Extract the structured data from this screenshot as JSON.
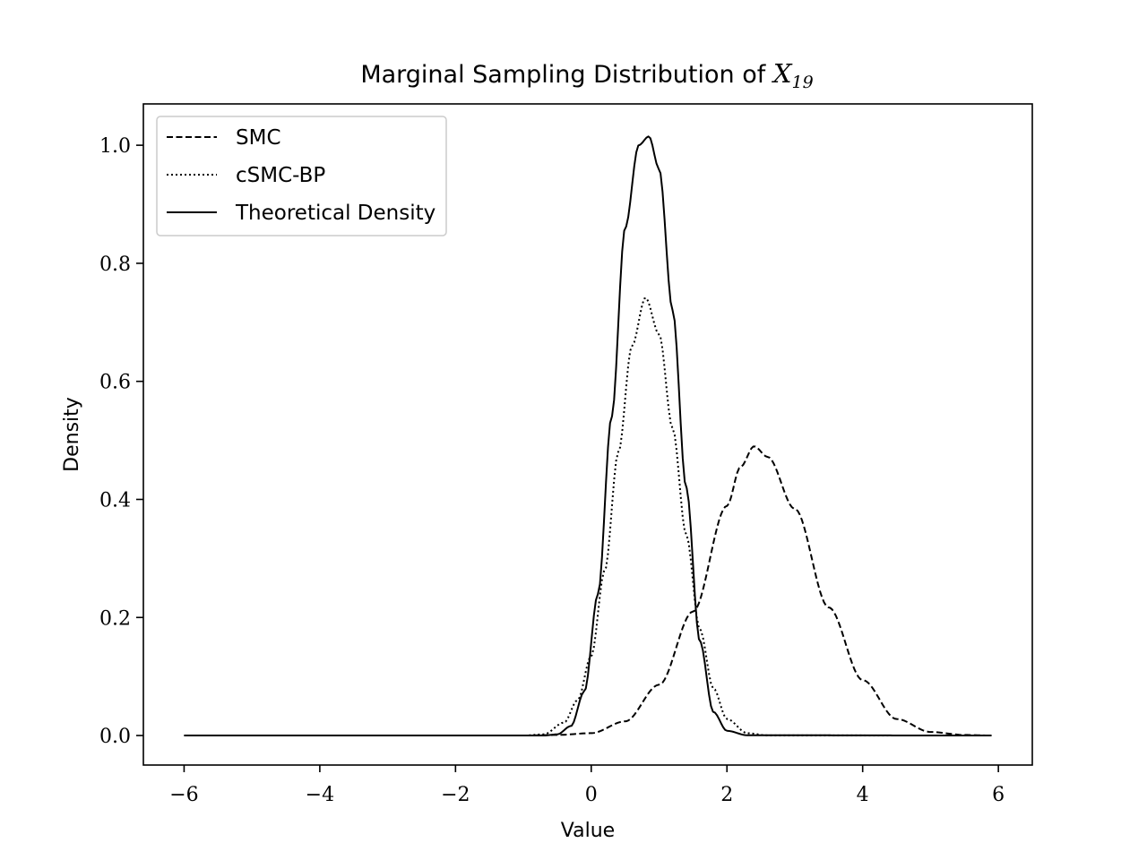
{
  "chart_data": {
    "type": "line",
    "title": "Marginal Sampling Distribution of X19",
    "title_main": "Marginal Sampling Distribution of",
    "title_var": "X",
    "title_sub": "19",
    "xlabel": "Value",
    "ylabel": "Density",
    "xlim": [
      -6.6,
      6.5
    ],
    "ylim": [
      -0.05,
      1.07
    ],
    "xticks": [
      -6,
      -4,
      -2,
      0,
      2,
      4,
      6
    ],
    "xtick_labels": [
      "−6",
      "−4",
      "−2",
      "0",
      "2",
      "4",
      "6"
    ],
    "yticks": [
      0.0,
      0.2,
      0.4,
      0.6,
      0.8,
      1.0
    ],
    "ytick_labels": [
      "0.0",
      "0.2",
      "0.4",
      "0.6",
      "0.8",
      "1.0"
    ],
    "grid": false,
    "legend_position": "top-left",
    "x_range": [
      -6,
      5.9
    ],
    "series": [
      {
        "name": "SMC",
        "style": "dashed",
        "color": "#000000",
        "x": [
          -6,
          -2,
          -1,
          -0.5,
          0,
          0.5,
          1,
          1.5,
          2,
          2.2,
          2.4,
          2.6,
          3,
          3.5,
          4,
          4.5,
          5,
          5.5,
          5.9
        ],
        "y": [
          0,
          0,
          0,
          0.001,
          0.004,
          0.024,
          0.086,
          0.21,
          0.389,
          0.455,
          0.49,
          0.472,
          0.384,
          0.217,
          0.094,
          0.028,
          0.006,
          0.001,
          0
        ]
      },
      {
        "name": "cSMC-BP",
        "style": "dotted",
        "color": "#000000",
        "x": [
          -6,
          -1,
          -0.7,
          -0.4,
          -0.2,
          0,
          0.2,
          0.4,
          0.6,
          0.8,
          1.0,
          1.2,
          1.4,
          1.6,
          1.8,
          2.0,
          2.3,
          2.6,
          5.9
        ],
        "y": [
          0,
          0,
          0.002,
          0.022,
          0.06,
          0.135,
          0.28,
          0.48,
          0.66,
          0.742,
          0.68,
          0.52,
          0.34,
          0.18,
          0.08,
          0.028,
          0.004,
          0.0003,
          0
        ]
      },
      {
        "name": "Theoretical Density",
        "style": "solid",
        "color": "#000000",
        "x": [
          -6,
          -0.7,
          -0.5,
          -0.3,
          -0.1,
          0.1,
          0.3,
          0.5,
          0.7,
          0.85,
          1.0,
          1.2,
          1.4,
          1.6,
          1.8,
          2.0,
          2.3,
          5.9
        ],
        "y": [
          0,
          0,
          0.002,
          0.016,
          0.075,
          0.24,
          0.54,
          0.86,
          1.0,
          1.015,
          0.96,
          0.72,
          0.42,
          0.16,
          0.04,
          0.008,
          0.0005,
          0
        ]
      }
    ]
  }
}
